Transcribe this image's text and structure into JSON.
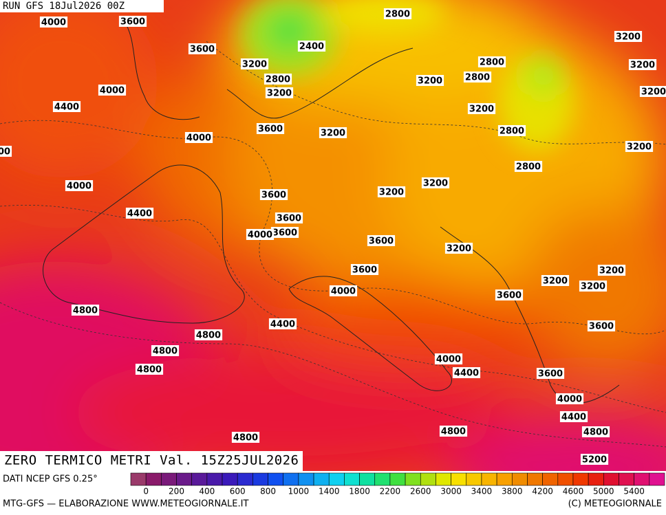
{
  "header": {
    "run": "RUN GFS 18Jul2026 00Z"
  },
  "map": {
    "title": "ZERO TERMICO METRI Val. 15Z25JUL2026",
    "contour_labels": [
      "4000",
      "3600",
      "2800",
      "3600",
      "2400",
      "3200",
      "3200",
      "2800",
      "2800",
      "3200",
      "4000",
      "3200",
      "2800",
      "3200",
      "3200",
      "4400",
      "3200",
      "3600",
      "3200",
      "2800",
      "4000",
      "00",
      "3200",
      "2800",
      "4000",
      "3200",
      "3200",
      "3600",
      "4400",
      "3600",
      "3600",
      "4000",
      "3600",
      "3200",
      "3600",
      "3200",
      "3200",
      "3200",
      "4000",
      "3600",
      "4800",
      "4400",
      "3600",
      "4800",
      "4800",
      "4000",
      "4800",
      "4400",
      "3600",
      "4000",
      "4400",
      "4800",
      "4800",
      "4800",
      "5200"
    ]
  },
  "colorbar": {
    "source": "DATI NCEP GFS 0.25°",
    "colors": [
      "#9a3a6a",
      "#8a1a6a",
      "#7a1a7a",
      "#6a1a8a",
      "#5a1a9a",
      "#4a1aaa",
      "#3a1aba",
      "#2a2ad0",
      "#1a3ae0",
      "#1050f0",
      "#1070f0",
      "#1090f0",
      "#10b0f0",
      "#10d0f0",
      "#10e0d0",
      "#10e0a0",
      "#20e070",
      "#40e040",
      "#80e020",
      "#b0e010",
      "#e0e800",
      "#f8e000",
      "#f8c800",
      "#f8b400",
      "#f8a000",
      "#f08c00",
      "#f07800",
      "#f06400",
      "#f05000",
      "#f03800",
      "#e82010",
      "#e01030",
      "#e01050",
      "#e01070",
      "#e01090"
    ],
    "labels": [
      "0",
      "200",
      "400",
      "600",
      "800",
      "1000",
      "1400",
      "1800",
      "2200",
      "2600",
      "3000",
      "3400",
      "3800",
      "4200",
      "4600",
      "5000",
      "5400"
    ]
  },
  "footer": {
    "left": "MTG-GFS — ELABORAZIONE WWW.METEOGIORNALE.IT",
    "right": "(C) METEOGIORNALE"
  }
}
